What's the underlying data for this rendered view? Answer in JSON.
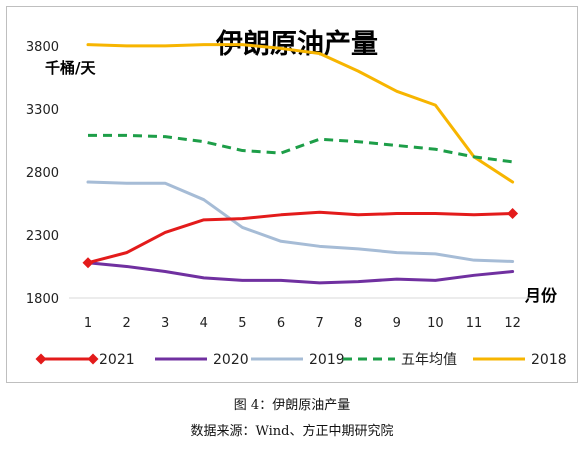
{
  "chart_data": {
    "type": "line",
    "title": "伊朗原油产量",
    "ylabel": "千桶/天",
    "xlabel": "月份",
    "categories": [
      "1",
      "2",
      "3",
      "4",
      "5",
      "6",
      "7",
      "8",
      "9",
      "10",
      "11",
      "12"
    ],
    "yticks": [
      "1800",
      "2300",
      "2800",
      "3300",
      "3800"
    ],
    "ylim": [
      1800,
      3950
    ],
    "grid": false,
    "legend_position": "bottom",
    "series": [
      {
        "name": "2021",
        "color": "#e31b1b",
        "style": "solid-diamond",
        "values": [
          2080,
          2160,
          2320,
          2420,
          2430,
          2460,
          2480,
          2460,
          2470,
          2470,
          2460,
          2470
        ]
      },
      {
        "name": "2020",
        "color": "#7030a0",
        "style": "solid",
        "values": [
          2080,
          2050,
          2010,
          1960,
          1940,
          1940,
          1920,
          1930,
          1950,
          1940,
          1980,
          2010
        ]
      },
      {
        "name": "2019",
        "color": "#a6bcd6",
        "style": "solid",
        "values": [
          2720,
          2710,
          2710,
          2580,
          2360,
          2250,
          2210,
          2190,
          2160,
          2150,
          2100,
          2090
        ]
      },
      {
        "name": "五年均值",
        "color": "#1d9e48",
        "style": "dashed",
        "values": [
          3090,
          3090,
          3080,
          3040,
          2970,
          2950,
          3060,
          3040,
          3010,
          2980,
          2920,
          2880
        ]
      },
      {
        "name": "2018",
        "color": "#f7b500",
        "style": "solid",
        "values": [
          3810,
          3800,
          3800,
          3810,
          3810,
          3780,
          3740,
          3600,
          3440,
          3330,
          2920,
          2720
        ]
      }
    ]
  },
  "captions": {
    "figure": "图 4：伊朗原油产量",
    "source": "数据来源：Wind、方正中期研究院"
  }
}
